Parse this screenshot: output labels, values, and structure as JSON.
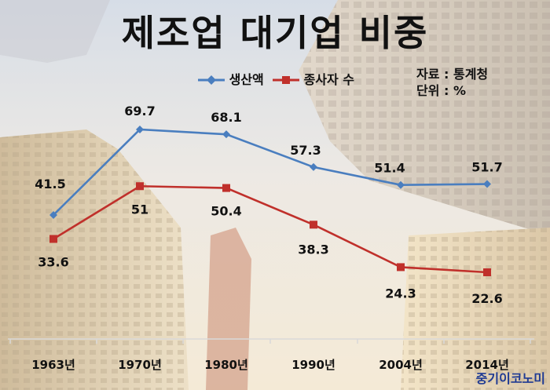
{
  "title": "제조업 대기업 비중",
  "source_lines": [
    "자료 : 통계청",
    "단위 : %"
  ],
  "brand": "중기이코노미",
  "chart_data": {
    "type": "line",
    "categories": [
      "1963년",
      "1970년",
      "1980년",
      "1990년",
      "2004년",
      "2014년"
    ],
    "series": [
      {
        "name": "생산액",
        "color": "#4a7ebf",
        "marker": "diamond",
        "values": [
          41.5,
          69.7,
          68.1,
          57.3,
          51.4,
          51.7
        ],
        "labels": [
          "41.5",
          "69.7",
          "68.1",
          "57.3",
          "51.4",
          "51.7"
        ]
      },
      {
        "name": "종사자 수",
        "color": "#c0302b",
        "marker": "square",
        "values": [
          33.6,
          51,
          50.4,
          38.3,
          24.3,
          22.6
        ],
        "labels": [
          "33.6",
          "51",
          "50.4",
          "38.3",
          "24.3",
          "22.6"
        ]
      }
    ],
    "ylim": [
      10,
      90
    ],
    "grid": false,
    "legend_position": "top-center"
  }
}
